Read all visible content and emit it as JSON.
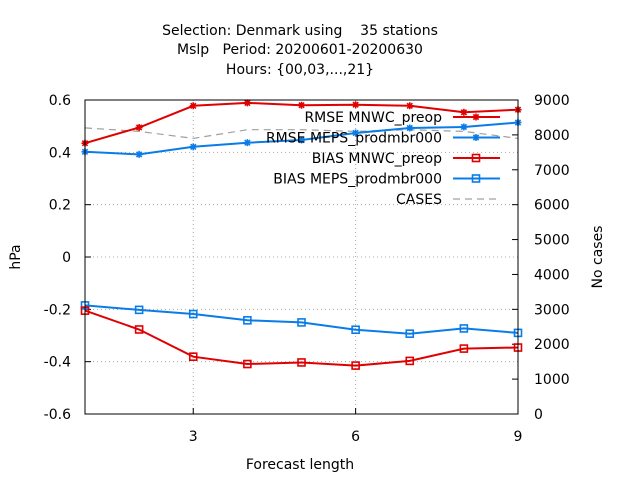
{
  "chart_data": {
    "type": "line",
    "title_lines": [
      "Selection: Denmark using    35 stations",
      "Mslp   Period: 20200601-20200630",
      "Hours: {00,03,...,21}"
    ],
    "xlabel": "Forecast length",
    "ylabel": "hPa",
    "y2label": "No cases",
    "xlim": [
      1,
      9
    ],
    "ylim": [
      -0.6,
      0.6
    ],
    "y2lim": [
      0,
      9000
    ],
    "xticks": [
      "3",
      "6",
      "9"
    ],
    "xtick_values": [
      3,
      6,
      9
    ],
    "yticks": [
      "-0.6",
      "-0.4",
      "-0.2",
      "0",
      "0.2",
      "0.4",
      "0.6"
    ],
    "ytick_values": [
      -0.6,
      -0.4,
      -0.2,
      0,
      0.2,
      0.4,
      0.6
    ],
    "y2ticks": [
      "0",
      "1000",
      "2000",
      "3000",
      "4000",
      "5000",
      "6000",
      "7000",
      "8000",
      "9000"
    ],
    "y2tick_values": [
      0,
      1000,
      2000,
      3000,
      4000,
      5000,
      6000,
      7000,
      8000,
      9000
    ],
    "grid": true,
    "legend_position": "top-right",
    "x": [
      1,
      2,
      3,
      4,
      5,
      6,
      7,
      8,
      9
    ],
    "series": [
      {
        "name": "RMSE MNWC_preop",
        "axis": "y",
        "style": "line-star",
        "color": "#e00000",
        "values": [
          0.435,
          0.495,
          0.578,
          0.589,
          0.58,
          0.582,
          0.578,
          0.553,
          0.563
        ]
      },
      {
        "name": "RMSE MEPS_prodmbr000",
        "axis": "y",
        "style": "line-star",
        "color": "#0a7ce8",
        "values": [
          0.402,
          0.392,
          0.421,
          0.437,
          0.447,
          0.474,
          0.493,
          0.497,
          0.514
        ]
      },
      {
        "name": "BIAS MNWC_preop",
        "axis": "y",
        "style": "line-square",
        "color": "#e00000",
        "values": [
          -0.205,
          -0.277,
          -0.381,
          -0.409,
          -0.403,
          -0.415,
          -0.397,
          -0.35,
          -0.346
        ]
      },
      {
        "name": "BIAS MEPS_prodmbr000",
        "axis": "y",
        "style": "line-square",
        "color": "#0a7ce8",
        "values": [
          -0.185,
          -0.202,
          -0.218,
          -0.242,
          -0.25,
          -0.278,
          -0.293,
          -0.273,
          -0.29
        ]
      },
      {
        "name": "CASES",
        "axis": "y2",
        "style": "dashed",
        "color": "#a0a0a0",
        "values": [
          8200,
          8100,
          7900,
          8150,
          8150,
          8100,
          8150,
          8100,
          7900
        ]
      }
    ]
  }
}
